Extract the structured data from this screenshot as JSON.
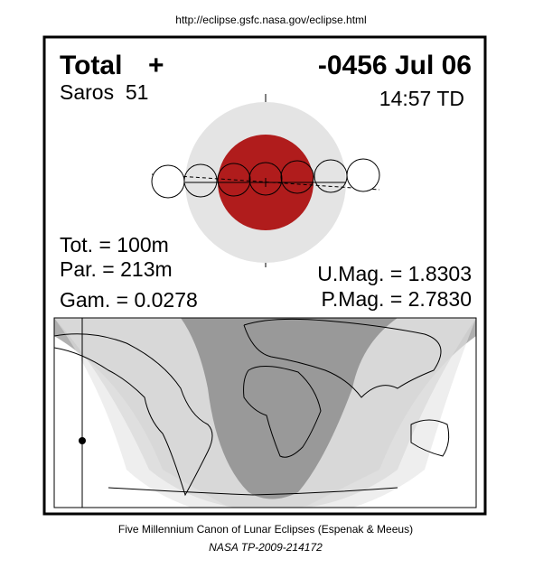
{
  "header": {
    "url": "http://eclipse.gsfc.nasa.gov/eclipse.html"
  },
  "panel": {
    "eclipse_type": "Total",
    "symbol": "+",
    "date": "-0456 Jul 06",
    "saros": "Saros  51",
    "time": "14:57 TD",
    "total_duration": "Tot. = 100m",
    "partial_duration": "Par. = 213m",
    "gamma": "Gam. = 0.0278",
    "umbral_magnitude": "U.Mag. = 1.8303",
    "penumbral_magnitude": "P.Mag. = 2.7830"
  },
  "footer": {
    "title": "Five Millennium Canon of Lunar Eclipses (Espenak & Meeus)",
    "reference": "NASA TP-2009-214172"
  }
}
